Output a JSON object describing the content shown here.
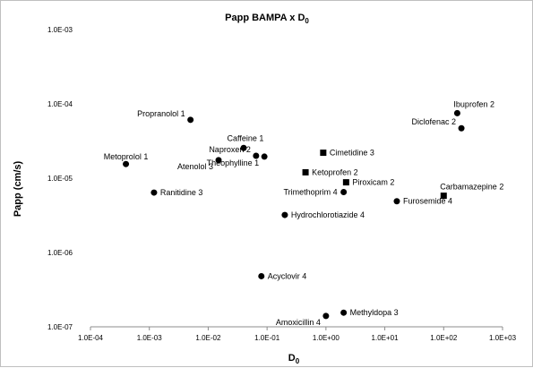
{
  "chart_data": {
    "type": "scatter",
    "title": "Papp BAMPA x D",
    "title_subscript": "0",
    "xlabel": "D",
    "xlabel_subscript": "0",
    "ylabel": "Papp (cm/s)",
    "x_scale": "log",
    "y_scale": "log",
    "xlim": [
      0.0001,
      1000
    ],
    "ylim": [
      1e-07,
      0.001
    ],
    "x_ticks": [
      "1.0E-04",
      "1.0E-03",
      "1.0E-02",
      "1.0E-01",
      "1.0E+00",
      "1.0E+01",
      "1.0E+02",
      "1.0E+03"
    ],
    "y_ticks": [
      "1.0E-07",
      "1.0E-06",
      "1.0E-05",
      "1.0E-04",
      "1.0E-03"
    ],
    "grid": false,
    "legend": "none",
    "marker_color": "#000000",
    "points": [
      {
        "label": "Propranolol 1",
        "x": 0.005,
        "y": 6.1e-05,
        "marker": "circle",
        "label_pos": "left-up"
      },
      {
        "label": "Metoprolol 1",
        "x": 0.0004,
        "y": 1.55e-05,
        "marker": "circle",
        "label_pos": "above"
      },
      {
        "label": "Ranitidine 3",
        "x": 0.0012,
        "y": 6.4e-06,
        "marker": "circle",
        "label_pos": "right"
      },
      {
        "label": "Atenolol 3",
        "x": 0.015,
        "y": 1.75e-05,
        "marker": "circle",
        "label_pos": "below-left"
      },
      {
        "label": "Caffeine 1",
        "x": 0.04,
        "y": 2.55e-05,
        "marker": "circle",
        "label_pos": "above-left"
      },
      {
        "label": "Naproxen 2",
        "x": 0.065,
        "y": 2e-05,
        "marker": "circle",
        "label_pos": "left-up"
      },
      {
        "label": "Theophylline 1",
        "x": 0.09,
        "y": 1.95e-05,
        "marker": "circle",
        "label_pos": "below-left"
      },
      {
        "label": "Cimetidine 3",
        "x": 0.9,
        "y": 2.2e-05,
        "marker": "square",
        "label_pos": "right"
      },
      {
        "label": "Ketoprofen 2",
        "x": 0.45,
        "y": 1.2e-05,
        "marker": "square",
        "label_pos": "right"
      },
      {
        "label": "Piroxicam 2",
        "x": 2.2,
        "y": 8.8e-06,
        "marker": "square",
        "label_pos": "right"
      },
      {
        "label": "Trimethoprim 4",
        "x": 2.0,
        "y": 6.5e-06,
        "marker": "circle",
        "label_pos": "left"
      },
      {
        "label": "Hydrochlorotiazide 4",
        "x": 0.2,
        "y": 3.2e-06,
        "marker": "circle",
        "label_pos": "right"
      },
      {
        "label": "Acyclovir 4",
        "x": 0.08,
        "y": 4.8e-07,
        "marker": "circle",
        "label_pos": "right"
      },
      {
        "label": "Methyldopa 3",
        "x": 2.0,
        "y": 1.55e-07,
        "marker": "circle",
        "label_pos": "right"
      },
      {
        "label": "Amoxicillin 4",
        "x": 1.0,
        "y": 1.4e-07,
        "marker": "circle",
        "label_pos": "below-left"
      },
      {
        "label": "Ibuprofen 2",
        "x": 170,
        "y": 7.5e-05,
        "marker": "circle",
        "label_pos": "above-right"
      },
      {
        "label": "Diclofenac 2",
        "x": 200,
        "y": 4.7e-05,
        "marker": "circle",
        "label_pos": "left-up"
      },
      {
        "label": "Carbamazepine 2",
        "x": 100,
        "y": 5.8e-06,
        "marker": "square",
        "label_pos": "above-right"
      },
      {
        "label": "Furosemide 4",
        "x": 16,
        "y": 4.9e-06,
        "marker": "circle",
        "label_pos": "right"
      }
    ]
  }
}
